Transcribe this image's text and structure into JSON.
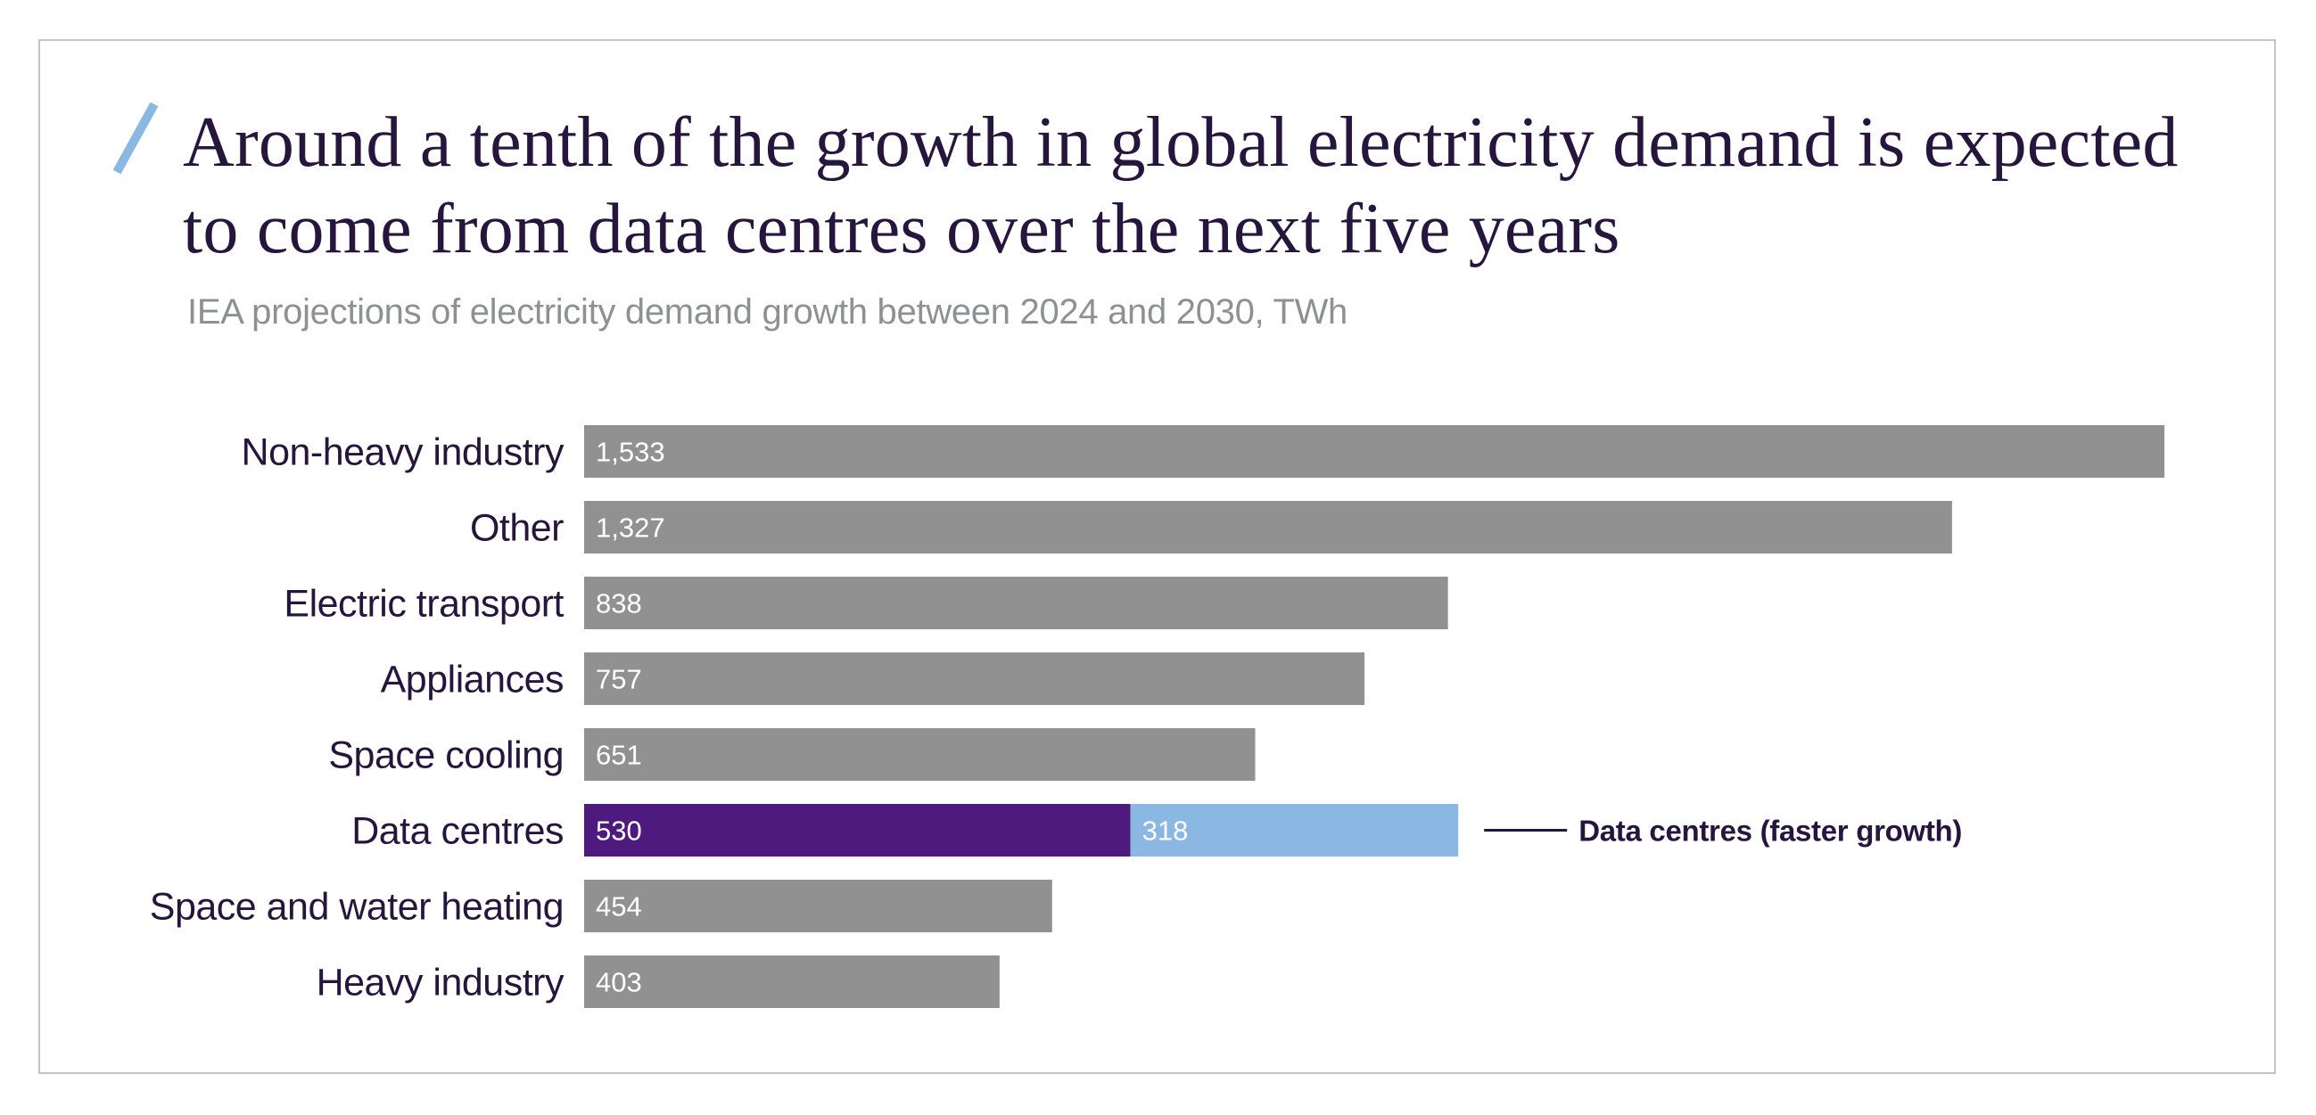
{
  "chart_data": {
    "type": "bar",
    "orientation": "horizontal",
    "stacked": true,
    "title": "Around a tenth of the growth in global electricity demand is expected to come from data centres over the next five years",
    "title_lines": [
      "Around a tenth of the growth in global electricity demand is expected",
      "to come from data centres over the next five years"
    ],
    "subtitle": "IEA projections of electricity demand growth between 2024 and 2030, TWh",
    "xlabel": "",
    "ylabel": "",
    "unit": "TWh",
    "grid": false,
    "xlim": [
      0,
      1533
    ],
    "categories": [
      "Non-heavy industry",
      "Other",
      "Electric transport",
      "Appliances",
      "Space cooling",
      "Data centres",
      "Space and water heating",
      "Heavy industry"
    ],
    "series": [
      {
        "name": "Base projection",
        "color": "#919191",
        "highlight_color": "#4e1a7e",
        "highlight_category": "Data centres",
        "values": [
          1533,
          1327,
          838,
          757,
          651,
          530,
          454,
          403
        ],
        "labels": [
          "1,533",
          "1,327",
          "838",
          "757",
          "651",
          "530",
          "454",
          "403"
        ]
      },
      {
        "name": "Data centres (faster growth)",
        "color": "#8ab8e2",
        "values": [
          0,
          0,
          0,
          0,
          0,
          318,
          0,
          0
        ],
        "labels": [
          "",
          "",
          "",
          "",
          "",
          "318",
          "",
          ""
        ]
      }
    ],
    "annotations": [
      {
        "category": "Data centres",
        "text": "Data centres (faster growth)",
        "style": "leader-line-right"
      }
    ]
  },
  "colors": {
    "accent_slash": "#8ab8e2",
    "title_text": "#26153d",
    "subtitle_text": "#8e9194",
    "bar_gray": "#919191",
    "bar_purple": "#4e1a7e",
    "bar_lightblue": "#8ab8e2",
    "panel_border": "#c4c4c4"
  },
  "icons": {
    "title_accent": "slash-accent-icon"
  }
}
